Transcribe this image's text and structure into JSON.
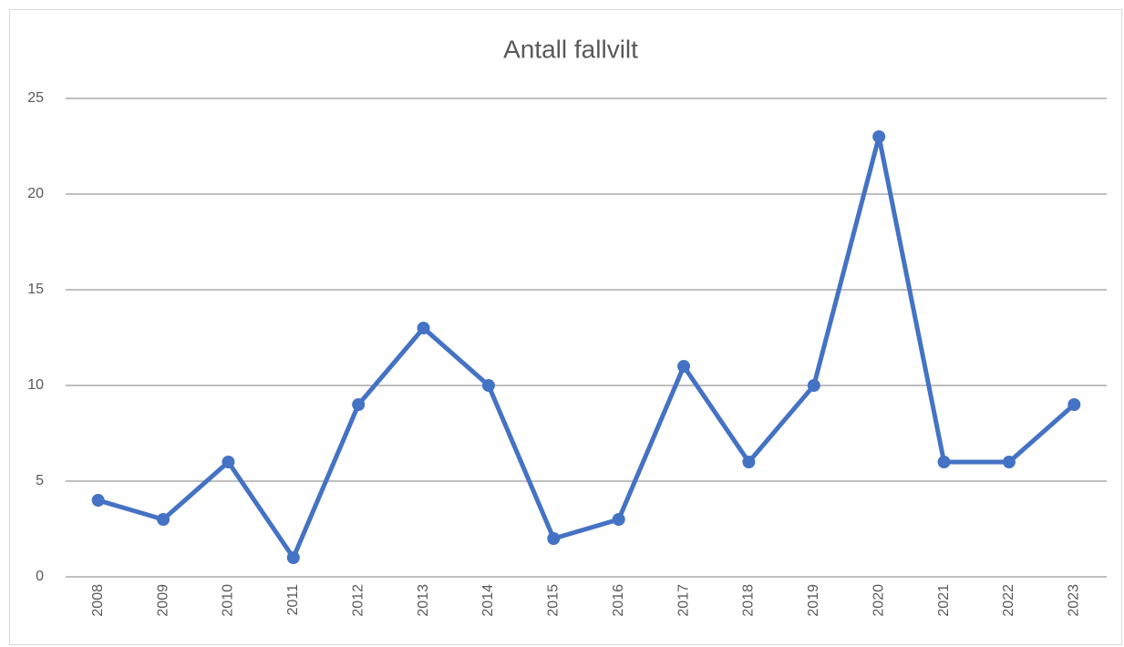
{
  "chart_data": {
    "type": "line",
    "title": "Antall fallvilt",
    "categories": [
      "2008",
      "2009",
      "2010",
      "2011",
      "2012",
      "2013",
      "2014",
      "2015",
      "2016",
      "2017",
      "2018",
      "2019",
      "2020",
      "2021",
      "2022",
      "2023"
    ],
    "values": [
      4,
      3,
      6,
      1,
      9,
      13,
      10,
      2,
      3,
      11,
      6,
      10,
      23,
      6,
      6,
      9
    ],
    "color": "#4472c4",
    "ylim": [
      0,
      25
    ],
    "yticks": [
      0,
      5,
      10,
      15,
      20,
      25
    ],
    "grid": true
  }
}
